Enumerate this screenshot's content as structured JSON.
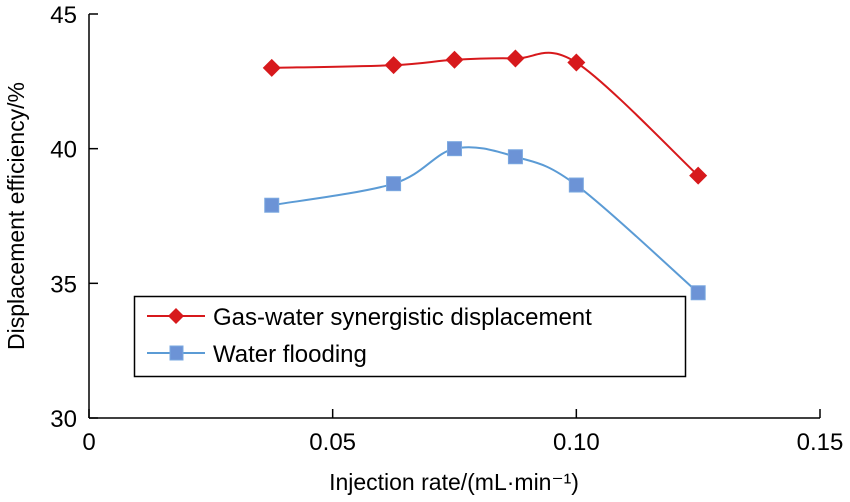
{
  "chart_data": {
    "type": "line",
    "title": "",
    "xlabel": "Injection rate/(mL·min⁻¹)",
    "ylabel": "Displacement efficiency/%",
    "xlim": [
      0,
      0.15
    ],
    "ylim": [
      30,
      45
    ],
    "x_ticks": [
      0,
      0.05,
      0.1,
      0.15
    ],
    "x_tick_labels": [
      "0",
      "0.05",
      "0.10",
      "0.15"
    ],
    "y_ticks": [
      30,
      35,
      40,
      45
    ],
    "y_tick_labels": [
      "30",
      "35",
      "40",
      "45"
    ],
    "grid": false,
    "legend_position": "lower-left",
    "x": [
      0.0375,
      0.0625,
      0.075,
      0.0875,
      0.1,
      0.125
    ],
    "series": [
      {
        "name": "Gas-water synergistic displacement",
        "color": "#d7191c",
        "marker": "diamond",
        "smooth": true,
        "values": [
          43.0,
          43.1,
          43.3,
          43.35,
          43.2,
          39.0
        ]
      },
      {
        "name": "Water flooding",
        "color": "#5b9bd5",
        "marker_color": "#6c93d6",
        "marker": "square",
        "smooth": true,
        "values": [
          37.9,
          38.7,
          40.0,
          39.7,
          38.65,
          34.65
        ]
      }
    ]
  }
}
